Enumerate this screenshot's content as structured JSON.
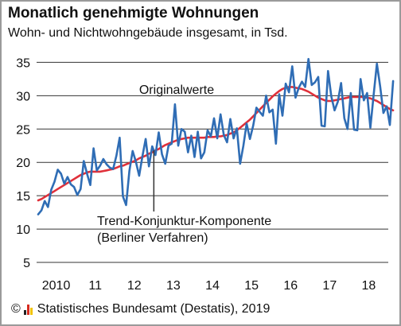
{
  "header": {
    "title": "Monatlich genehmigte Wohnungen",
    "subtitle": "Wohn- und Nichtwohngebäude insgesamt, in Tsd."
  },
  "footer": {
    "copyright_symbol": "©",
    "source": "Statistisches Bundesamt (Destatis), 2019",
    "logo_colors": [
      "#222222",
      "#d62b1f",
      "#f2c200"
    ]
  },
  "colors": {
    "original_series": "#2f6db5",
    "trend_series": "#e0303a",
    "gridline": "#333333",
    "annotation_line": "#333333"
  },
  "chart_data": {
    "type": "line",
    "title": "Monatlich genehmigte Wohnungen",
    "subtitle": "Wohn- und Nichtwohngebäude insgesamt, in Tsd.",
    "xlabel": "",
    "ylabel": "",
    "x_tick_labels": [
      "2010",
      "11",
      "12",
      "13",
      "14",
      "15",
      "16",
      "17",
      "18"
    ],
    "x_tick_years": [
      2010,
      2011,
      2012,
      2013,
      2014,
      2015,
      2016,
      2017,
      2018
    ],
    "x_range": [
      2010,
      2019
    ],
    "ylim": [
      5,
      36
    ],
    "y_ticks": [
      5,
      10,
      15,
      20,
      25,
      30,
      35
    ],
    "y_tick_labels": [
      "5",
      "10",
      "15",
      "20",
      "25",
      "30",
      "35"
    ],
    "grid": "horizontal",
    "legend": "inline annotations",
    "annotations": [
      {
        "text": "Originalwerte",
        "series": "original"
      },
      {
        "text": "Trend-Konjunktur-Komponente",
        "series": "trend"
      },
      {
        "text": "(Berliner Verfahren)",
        "series": "trend"
      }
    ],
    "series": [
      {
        "id": "original",
        "x_start": 2010,
        "step_months": 1,
        "values": [
          12.2,
          12.8,
          14.2,
          13.3,
          15.9,
          17.1,
          18.9,
          18.3,
          16.8,
          17.8,
          16.7,
          16.3,
          15.1,
          16.0,
          20.2,
          18.3,
          16.6,
          22.1,
          18.8,
          19.5,
          20.5,
          19.7,
          19.2,
          19.0,
          21.0,
          23.7,
          14.9,
          13.6,
          18.7,
          21.7,
          20.1,
          18.0,
          20.9,
          23.5,
          19.4,
          22.4,
          21.1,
          24.5,
          21.2,
          19.8,
          22.5,
          22.8,
          28.7,
          22.5,
          25.0,
          24.6,
          21.5,
          24.0,
          20.8,
          24.6,
          20.6,
          21.5,
          24.8,
          23.9,
          26.6,
          23.6,
          27.2,
          24.1,
          23.0,
          26.5,
          23.6,
          25.1,
          19.8,
          22.5,
          25.8,
          23.5,
          25.5,
          28.2,
          27.6,
          27.0,
          30.0,
          27.5,
          27.9,
          22.8,
          30.2,
          27.0,
          31.8,
          30.5,
          34.4,
          29.7,
          31.2,
          32.1,
          31.3,
          35.5,
          31.6,
          32.0,
          32.8,
          25.5,
          25.4,
          33.7,
          29.9,
          27.8,
          29.1,
          31.9,
          26.6,
          25.0,
          30.4,
          24.9,
          24.8,
          32.5,
          29.3,
          30.4,
          25.2,
          30.1,
          34.8,
          31.4,
          27.4,
          28.4,
          25.6,
          32.2
        ]
      },
      {
        "id": "trend",
        "x_start": 2010,
        "step_months": 1,
        "values": [
          14.3,
          14.5,
          14.8,
          15.1,
          15.4,
          15.7,
          16.0,
          16.3,
          16.6,
          16.9,
          17.2,
          17.5,
          17.8,
          18.1,
          18.3,
          18.5,
          18.6,
          18.6,
          18.6,
          18.6,
          18.7,
          18.8,
          18.9,
          19.0,
          19.2,
          19.4,
          19.5,
          19.7,
          19.9,
          20.1,
          20.3,
          20.6,
          20.8,
          21.0,
          21.3,
          21.5,
          21.8,
          22.0,
          22.3,
          22.6,
          22.8,
          23.0,
          23.2,
          23.4,
          23.5,
          23.6,
          23.7,
          23.7,
          23.7,
          23.7,
          23.7,
          23.7,
          23.8,
          23.8,
          23.8,
          23.9,
          23.9,
          24.0,
          24.1,
          24.3,
          24.5,
          24.8,
          25.2,
          25.6,
          26.0,
          26.4,
          26.9,
          27.4,
          27.9,
          28.4,
          28.9,
          29.4,
          29.9,
          30.3,
          30.7,
          31.0,
          31.2,
          31.3,
          31.3,
          31.2,
          31.1,
          31.0,
          30.8,
          30.6,
          30.3,
          30.0,
          29.7,
          29.5,
          29.3,
          29.2,
          29.2,
          29.3,
          29.4,
          29.5,
          29.6,
          29.7,
          29.8,
          29.8,
          29.8,
          29.8,
          29.8,
          29.7,
          29.6,
          29.4,
          29.2,
          28.9,
          28.6,
          28.3,
          28.0,
          27.8
        ]
      }
    ]
  }
}
